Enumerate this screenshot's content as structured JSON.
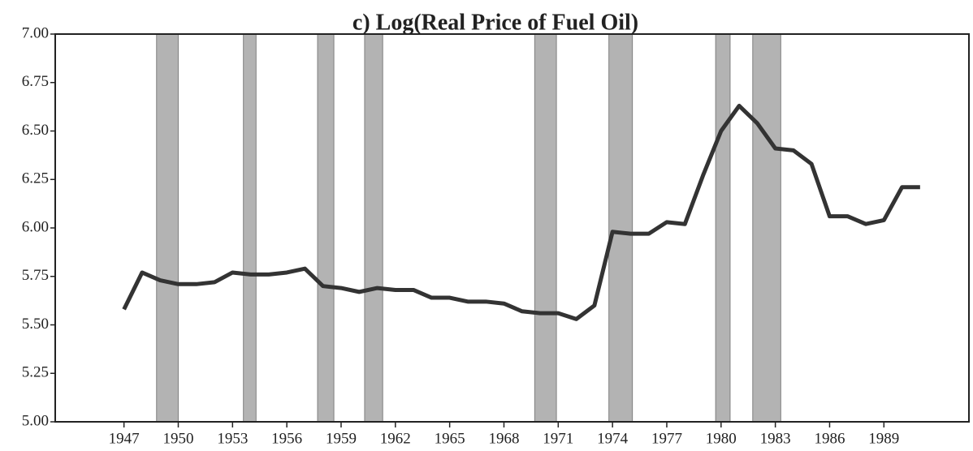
{
  "chart_data": {
    "type": "line",
    "title": "c) Log(Real Price of Fuel Oil)",
    "x": [
      1947,
      1948,
      1949,
      1950,
      1951,
      1952,
      1953,
      1954,
      1955,
      1956,
      1957,
      1958,
      1959,
      1960,
      1961,
      1962,
      1963,
      1964,
      1965,
      1966,
      1967,
      1968,
      1969,
      1970,
      1971,
      1972,
      1973,
      1974,
      1975,
      1976,
      1977,
      1978,
      1979,
      1980,
      1981,
      1982,
      1983,
      1984,
      1985,
      1986,
      1987,
      1988,
      1989,
      1990,
      1991
    ],
    "values": [
      5.58,
      5.77,
      5.73,
      5.71,
      5.71,
      5.72,
      5.77,
      5.76,
      5.76,
      5.77,
      5.79,
      5.7,
      5.69,
      5.67,
      5.69,
      5.68,
      5.68,
      5.64,
      5.64,
      5.62,
      5.62,
      5.61,
      5.57,
      5.56,
      5.56,
      5.53,
      5.6,
      5.98,
      5.97,
      5.97,
      6.03,
      6.02,
      6.27,
      6.5,
      6.63,
      6.54,
      6.41,
      6.4,
      6.33,
      6.06,
      6.06,
      6.02,
      6.04,
      6.21,
      6.21
    ],
    "color": "#333333",
    "shaded_periods": [
      [
        1948.8,
        1950.0
      ],
      [
        1953.6,
        1954.3
      ],
      [
        1957.7,
        1958.6
      ],
      [
        1960.3,
        1961.3
      ],
      [
        1969.7,
        1970.9
      ],
      [
        1973.8,
        1975.1
      ],
      [
        1979.7,
        1980.5
      ],
      [
        1981.75,
        1983.3
      ]
    ],
    "shade_color": "#9a9a9a",
    "xlim": [
      1943.2,
      1993.7
    ],
    "xticks": [
      1947,
      1950,
      1953,
      1956,
      1959,
      1962,
      1965,
      1968,
      1971,
      1974,
      1977,
      1980,
      1983,
      1986,
      1989
    ],
    "ylim": [
      5,
      7
    ],
    "yticks": [
      {
        "value": 5,
        "label": "5.00"
      },
      {
        "value": 5.25,
        "label": "5.25"
      },
      {
        "value": 5.5,
        "label": "5.50"
      },
      {
        "value": 5.75,
        "label": "5.75"
      },
      {
        "value": 6,
        "label": "6.00"
      },
      {
        "value": 6.25,
        "label": "6.25"
      },
      {
        "value": 6.5,
        "label": "6.50"
      },
      {
        "value": 6.75,
        "label": "6.75"
      },
      {
        "value": 7,
        "label": "7.00"
      }
    ]
  }
}
